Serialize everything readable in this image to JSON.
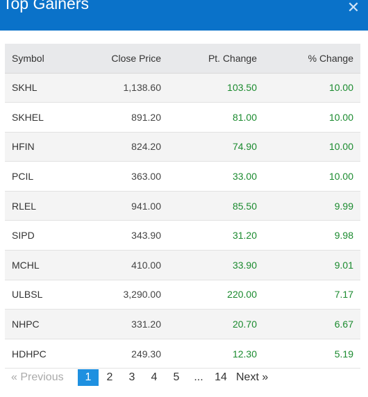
{
  "header": {
    "title": "Top Gainers",
    "close_icon": "close-icon"
  },
  "table": {
    "columns": [
      "Symbol",
      "Close Price",
      "Pt. Change",
      "% Change"
    ],
    "rows": [
      {
        "symbol": "SKHL",
        "close": "1,138.60",
        "pt": "103.50",
        "pct": "10.00"
      },
      {
        "symbol": "SKHEL",
        "close": "891.20",
        "pt": "81.00",
        "pct": "10.00"
      },
      {
        "symbol": "HFIN",
        "close": "824.20",
        "pt": "74.90",
        "pct": "10.00"
      },
      {
        "symbol": "PCIL",
        "close": "363.00",
        "pt": "33.00",
        "pct": "10.00"
      },
      {
        "symbol": "RLEL",
        "close": "941.00",
        "pt": "85.50",
        "pct": "9.99"
      },
      {
        "symbol": "SIPD",
        "close": "343.90",
        "pt": "31.20",
        "pct": "9.98"
      },
      {
        "symbol": "MCHL",
        "close": "410.00",
        "pt": "33.90",
        "pct": "9.01"
      },
      {
        "symbol": "ULBSL",
        "close": "3,290.00",
        "pt": "220.00",
        "pct": "7.17"
      },
      {
        "symbol": "NHPC",
        "close": "331.20",
        "pt": "20.70",
        "pct": "6.67"
      },
      {
        "symbol": "HDHPC",
        "close": "249.30",
        "pt": "12.30",
        "pct": "5.19"
      }
    ]
  },
  "pagination": {
    "previous": "« Previous",
    "pages": [
      "1",
      "2",
      "3",
      "4",
      "5",
      "...",
      "14"
    ],
    "active_page": "1",
    "next": "Next »"
  },
  "colors": {
    "header_bg": "#0a72c9",
    "gain": "#1a8a2e",
    "active_page": "#1e90e0"
  }
}
